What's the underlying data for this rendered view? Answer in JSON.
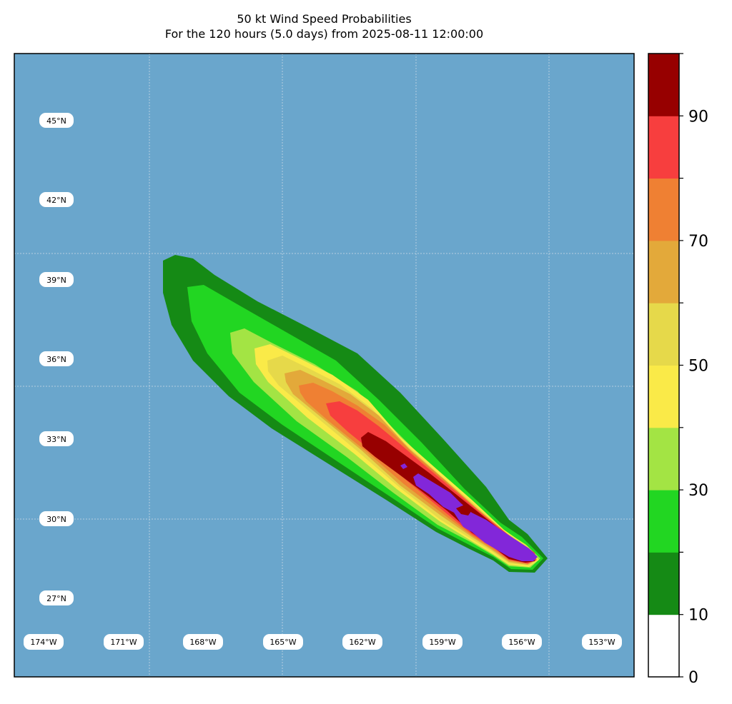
{
  "title": {
    "line1": "50 kt Wind Speed Probabilities",
    "line2": "For the 120 hours (5.0 days) from 2025-08-11 12:00:00"
  },
  "colors": {
    "ocean": "#6aa6cc",
    "frame": "#000000",
    "grid": "#c8d8e4"
  },
  "lat_labels": [
    "45°N",
    "42°N",
    "39°N",
    "36°N",
    "33°N",
    "30°N",
    "27°N"
  ],
  "lon_labels": [
    "174°W",
    "171°W",
    "168°W",
    "165°W",
    "162°W",
    "159°W",
    "156°W",
    "153°W"
  ],
  "colorbar": {
    "levels": [
      0,
      10,
      20,
      30,
      40,
      50,
      60,
      70,
      80,
      90,
      100
    ],
    "colors": [
      "#ffffff",
      "#158a15",
      "#22d622",
      "#a3e444",
      "#faea48",
      "#e6d94a",
      "#e3a93a",
      "#ef8033",
      "#f73e3e",
      "#970000",
      "#8227d9"
    ],
    "tick_labels": [
      "0",
      "10",
      "30",
      "50",
      "70",
      "90"
    ]
  },
  "probability_bands": [
    {
      "min_pct": 0,
      "name": "below-10"
    },
    {
      "min_pct": 10,
      "name": "10-20"
    },
    {
      "min_pct": 20,
      "name": "20-30"
    },
    {
      "min_pct": 30,
      "name": "30-40"
    },
    {
      "min_pct": 40,
      "name": "40-50"
    },
    {
      "min_pct": 50,
      "name": "50-60"
    },
    {
      "min_pct": 60,
      "name": "60-70"
    },
    {
      "min_pct": 70,
      "name": "70-80"
    },
    {
      "min_pct": 80,
      "name": "80-90"
    },
    {
      "min_pct": 90,
      "name": "90-100"
    }
  ]
}
